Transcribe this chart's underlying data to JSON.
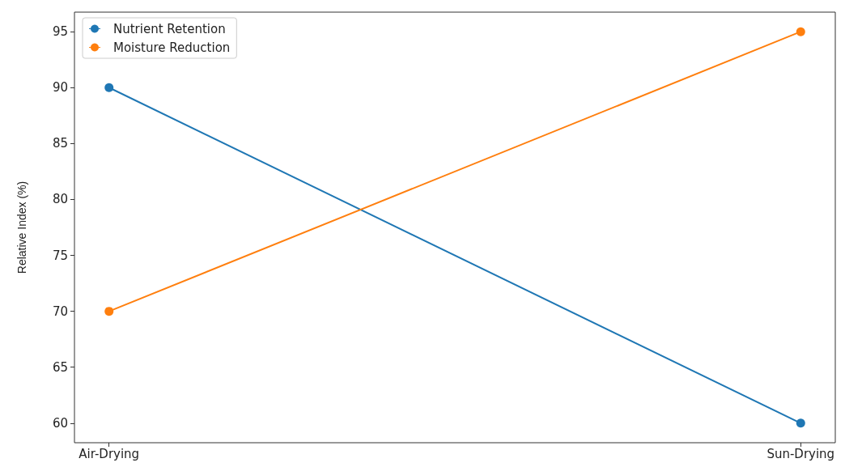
{
  "chart_data": {
    "type": "line",
    "ylabel": "Relative Index (%)",
    "categories": [
      "Air-Drying",
      "Sun-Drying"
    ],
    "series": [
      {
        "name": "Nutrient Retention",
        "color": "#1f77b4",
        "values": [
          90,
          60
        ]
      },
      {
        "name": "Moisture Reduction",
        "color": "#ff7f0e",
        "values": [
          70,
          95
        ]
      }
    ],
    "ylim": [
      58.25,
      96.75
    ],
    "yticks": [
      60,
      65,
      70,
      75,
      80,
      85,
      90,
      95
    ],
    "grid": false,
    "legend": "top left",
    "marker": "circle",
    "line_style": "solid"
  }
}
